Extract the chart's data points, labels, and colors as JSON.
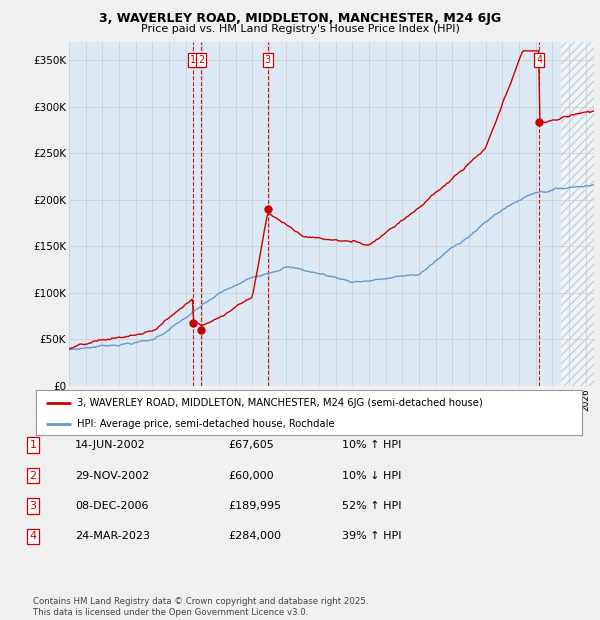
{
  "title": "3, WAVERLEY ROAD, MIDDLETON, MANCHESTER, M24 6JG",
  "subtitle": "Price paid vs. HM Land Registry's House Price Index (HPI)",
  "ylabel_ticks": [
    "£0",
    "£50K",
    "£100K",
    "£150K",
    "£200K",
    "£250K",
    "£300K",
    "£350K"
  ],
  "ytick_values": [
    0,
    50000,
    100000,
    150000,
    200000,
    250000,
    300000,
    350000
  ],
  "ylim": [
    0,
    370000
  ],
  "xlim_start": 1995.0,
  "xlim_end": 2026.5,
  "legend_line1": "3, WAVERLEY ROAD, MIDDLETON, MANCHESTER, M24 6JG (semi-detached house)",
  "legend_line2": "HPI: Average price, semi-detached house, Rochdale",
  "sale_markers": [
    {
      "year": 2002.45,
      "price": 67605,
      "label": "1"
    },
    {
      "year": 2002.92,
      "price": 60000,
      "label": "2"
    },
    {
      "year": 2006.93,
      "price": 189995,
      "label": "3"
    },
    {
      "year": 2023.22,
      "price": 284000,
      "label": "4"
    }
  ],
  "table_rows": [
    {
      "num": "1",
      "date": "14-JUN-2002",
      "price": "£67,605",
      "hpi": "10% ↑ HPI"
    },
    {
      "num": "2",
      "date": "29-NOV-2002",
      "price": "£60,000",
      "hpi": "10% ↓ HPI"
    },
    {
      "num": "3",
      "date": "08-DEC-2006",
      "price": "£189,995",
      "hpi": "52% ↑ HPI"
    },
    {
      "num": "4",
      "date": "24-MAR-2023",
      "price": "£284,000",
      "hpi": "39% ↑ HPI"
    }
  ],
  "footer": "Contains HM Land Registry data © Crown copyright and database right 2025.\nThis data is licensed under the Open Government Licence v3.0.",
  "hpi_color": "#6699cc",
  "price_color": "#cc0000",
  "marker_vline_color": "#cc0000",
  "bg_color": "#f0f0f0",
  "plot_bg_color": "#dce9f5",
  "hatch_start": 2024.5,
  "grid_color": "#cccccc"
}
